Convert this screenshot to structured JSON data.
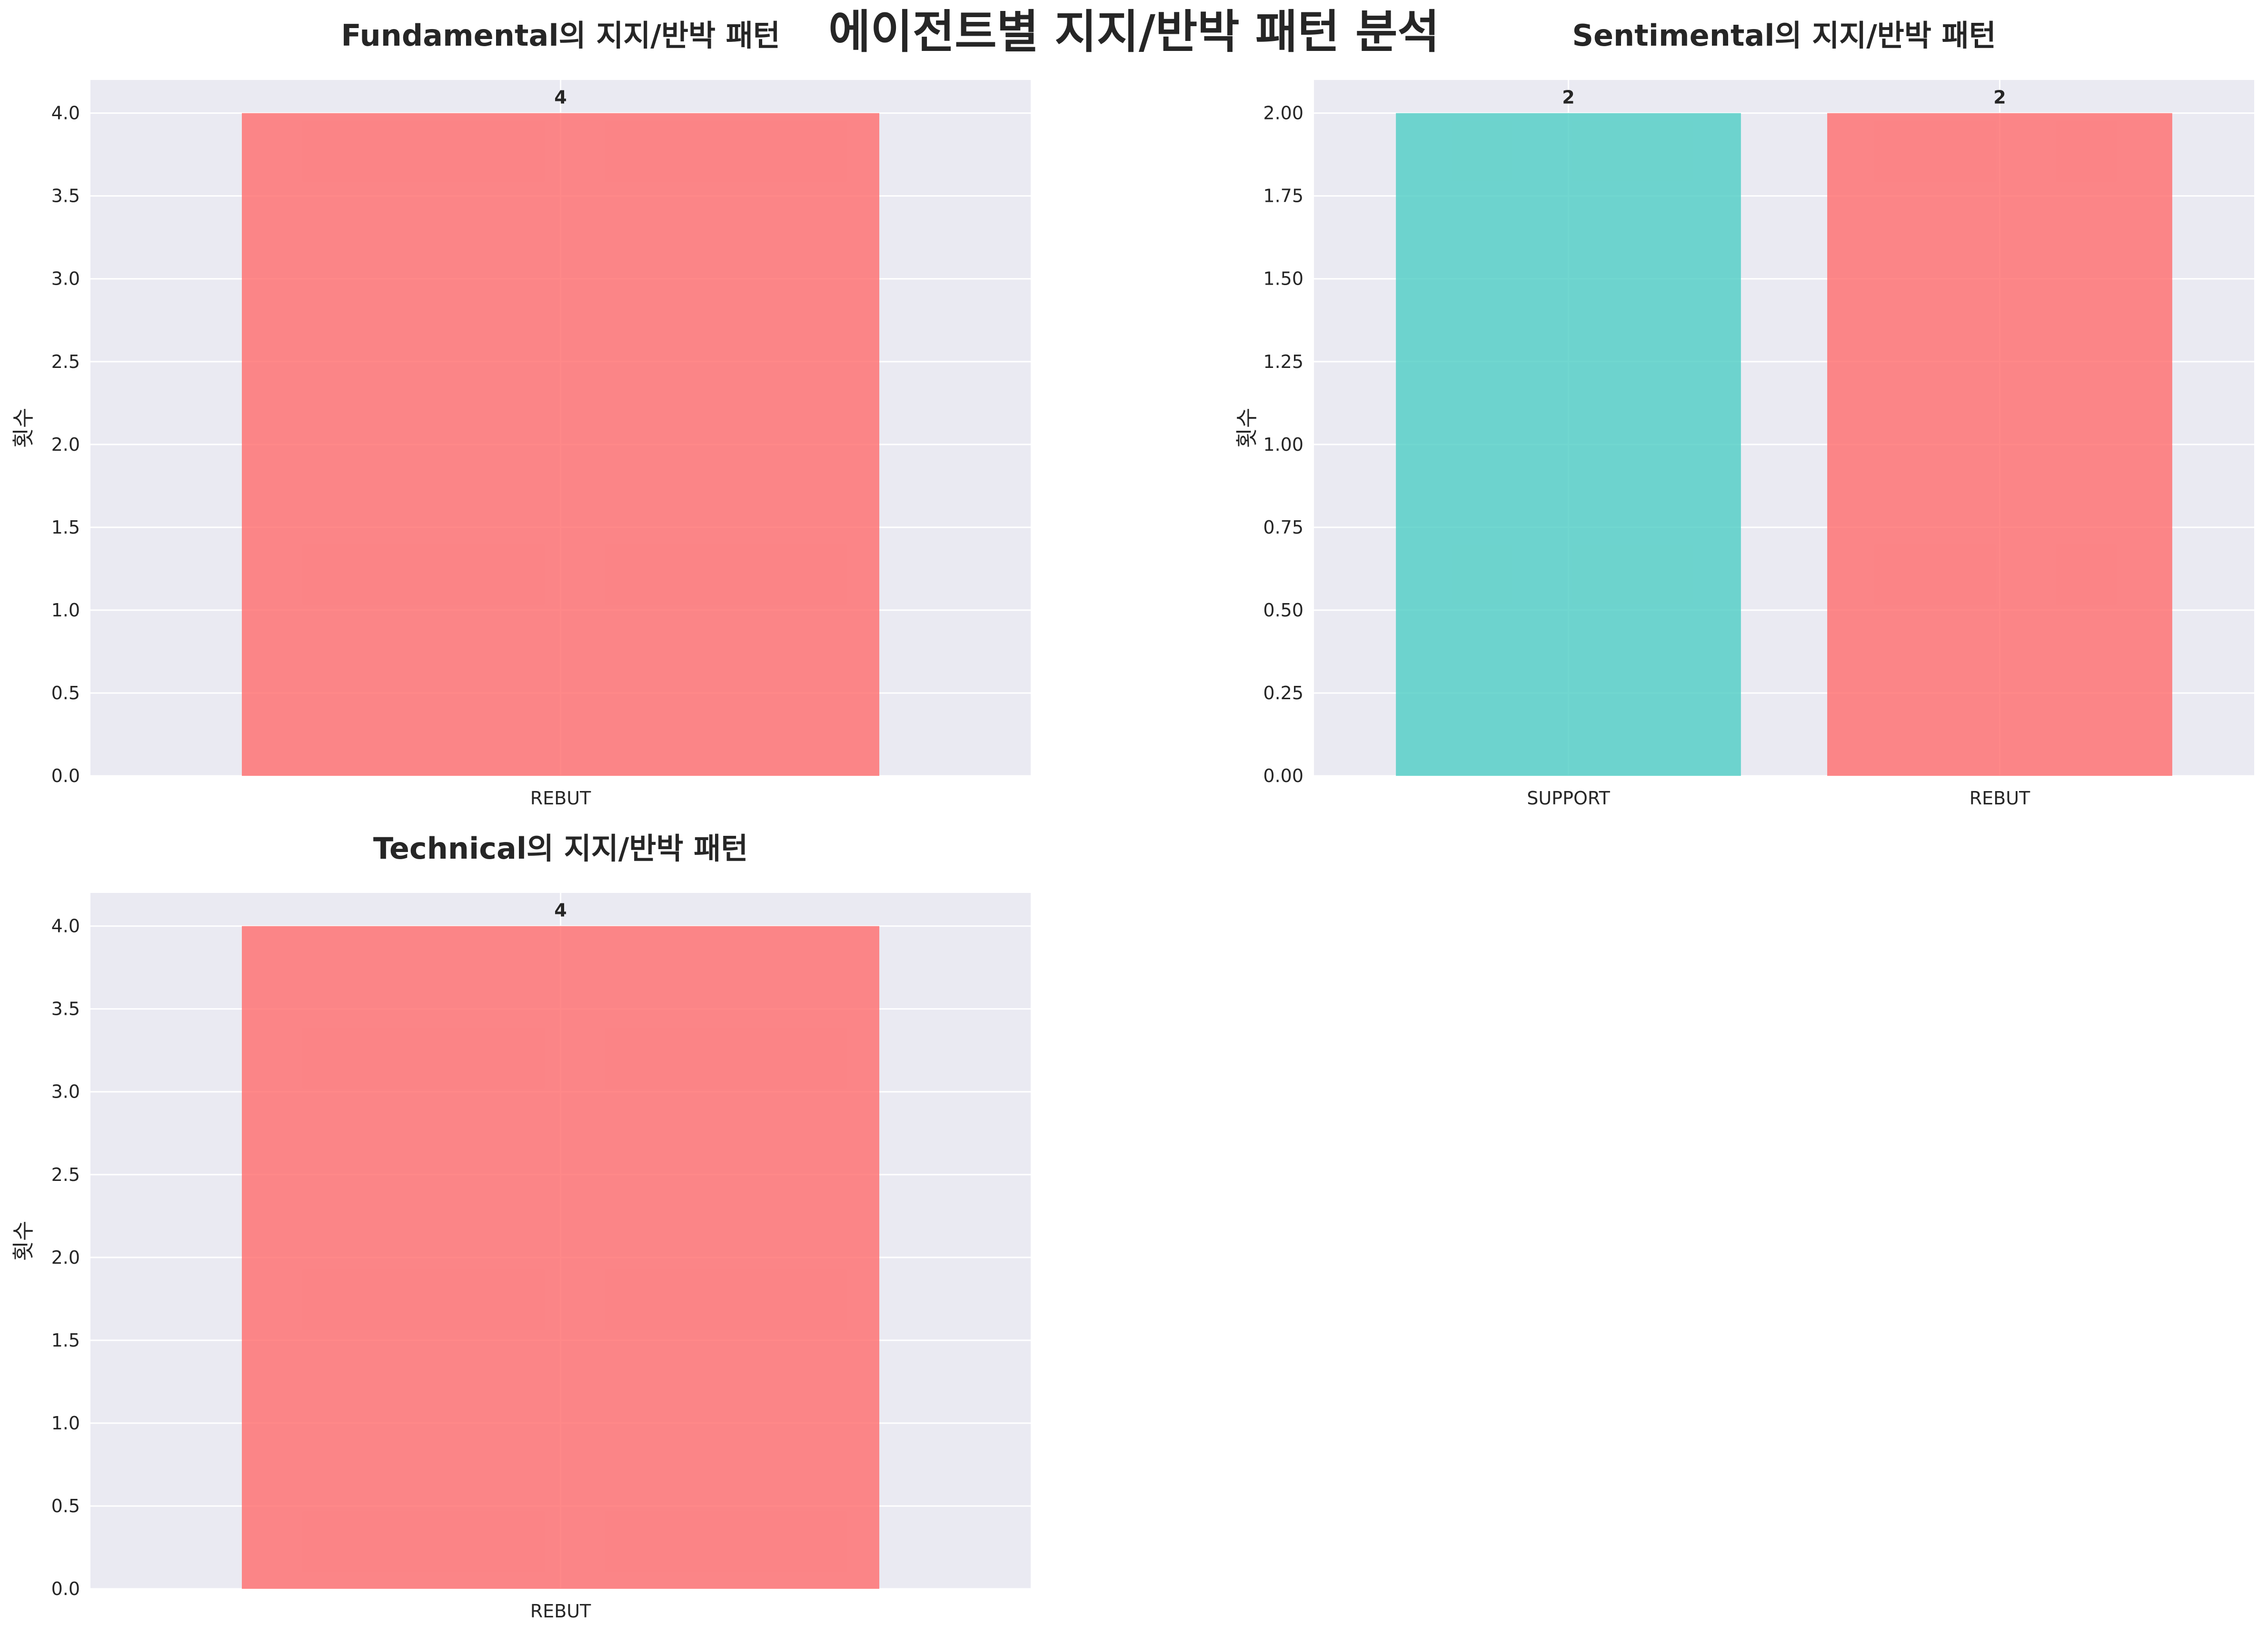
{
  "figure_title": "에이전트별 지지/반박 패턴 분석",
  "colors": {
    "axes_bg": "#EAEAF2",
    "grid": "#FFFFFF",
    "SUPPORT": "#4ECDC4",
    "REBUT": "#FF6B6B",
    "bar_alpha": 0.8
  },
  "chart_data": [
    {
      "type": "bar",
      "title": "Fundamental의 지지/반박 패턴",
      "categories": [
        "REBUT"
      ],
      "values": [
        4
      ],
      "value_labels": [
        "4"
      ],
      "xlabel": "",
      "ylabel": "횟수",
      "ylim": [
        0,
        4.2
      ],
      "yticks": [
        "0.0",
        "0.5",
        "1.0",
        "1.5",
        "2.0",
        "2.5",
        "3.0",
        "3.5",
        "4.0"
      ],
      "ytick_values": [
        0,
        0.5,
        1,
        1.5,
        2,
        2.5,
        3,
        3.5,
        4
      ],
      "grid": true
    },
    {
      "type": "bar",
      "title": "Sentimental의 지지/반박 패턴",
      "categories": [
        "SUPPORT",
        "REBUT"
      ],
      "values": [
        2,
        2
      ],
      "value_labels": [
        "2",
        "2"
      ],
      "xlabel": "",
      "ylabel": "횟수",
      "ylim": [
        0,
        2.1
      ],
      "yticks": [
        "0.00",
        "0.25",
        "0.50",
        "0.75",
        "1.00",
        "1.25",
        "1.50",
        "1.75",
        "2.00"
      ],
      "ytick_values": [
        0,
        0.25,
        0.5,
        0.75,
        1,
        1.25,
        1.5,
        1.75,
        2
      ],
      "grid": true
    },
    {
      "type": "bar",
      "title": "Technical의 지지/반박 패턴",
      "categories": [
        "REBUT"
      ],
      "values": [
        4
      ],
      "value_labels": [
        "4"
      ],
      "xlabel": "",
      "ylabel": "횟수",
      "ylim": [
        0,
        4.2
      ],
      "yticks": [
        "0.0",
        "0.5",
        "1.0",
        "1.5",
        "2.0",
        "2.5",
        "3.0",
        "3.5",
        "4.0"
      ],
      "ytick_values": [
        0,
        0.5,
        1,
        1.5,
        2,
        2.5,
        3,
        3.5,
        4
      ],
      "grid": true
    }
  ]
}
